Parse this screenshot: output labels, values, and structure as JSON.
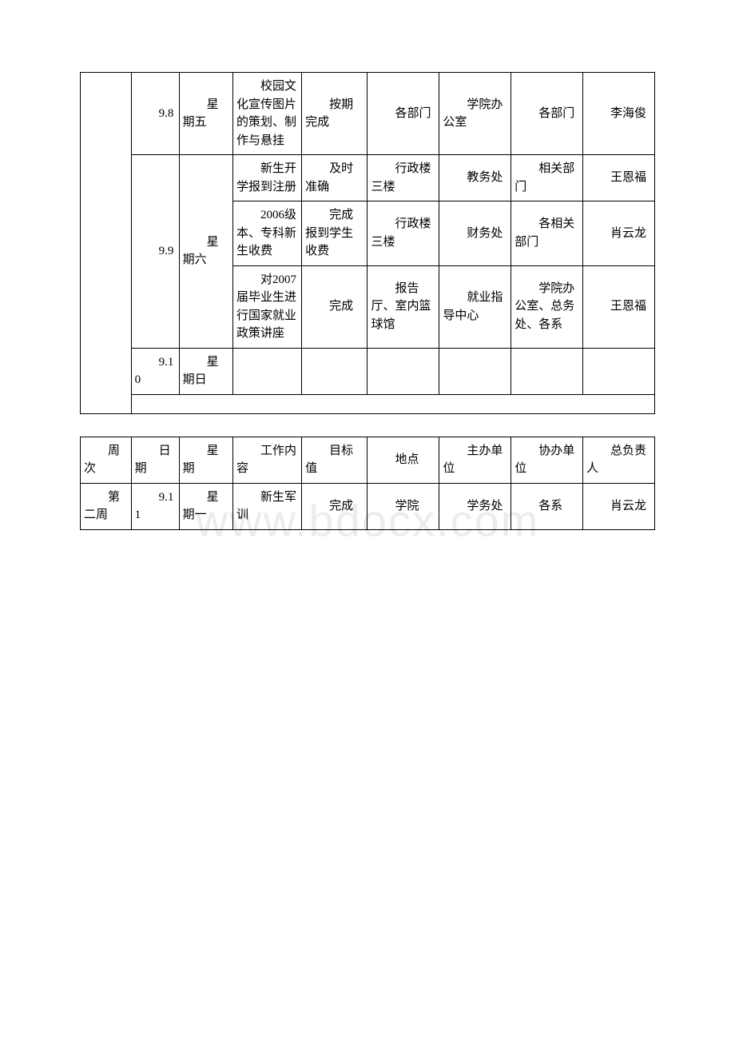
{
  "watermark": "www.bdocx.com",
  "table1": {
    "rows": [
      {
        "date": "9.8",
        "weekday": "星期五",
        "tasks": [
          {
            "content": "校园文化宣传图片的策划、制作与悬挂",
            "target": "按期完成",
            "location": "各部门",
            "host": "学院办公室",
            "assist": "各部门",
            "leader": "李海俊"
          }
        ]
      },
      {
        "date": "9.9",
        "weekday": "星期六",
        "tasks": [
          {
            "content": "新生开学报到注册",
            "target": "及时准确",
            "location": "行政楼三楼",
            "host": "教务处",
            "assist": "相关部门",
            "leader": "王恩福"
          },
          {
            "content": "2006级本、专科新生收费",
            "target": "完成报到学生收费",
            "location": "行政楼三楼",
            "host": "财务处",
            "assist": "各相关部门",
            "leader": "肖云龙"
          },
          {
            "content": "对2007届毕业生进行国家就业政策讲座",
            "target": "完成",
            "location": "报告厅、室内篮球馆",
            "host": "就业指导中心",
            "assist": "学院办公室、总务处、各系",
            "leader": "王恩福"
          }
        ]
      },
      {
        "date": "9.10",
        "weekday": "星期日",
        "tasks": [
          {
            "content": "",
            "target": "",
            "location": "",
            "host": "",
            "assist": "",
            "leader": ""
          }
        ]
      }
    ]
  },
  "table2": {
    "headers": {
      "week": "周次",
      "date": "日期",
      "weekday": "星期",
      "content": "工作内容",
      "target": "目标值",
      "location": "地点",
      "host": "主办单位",
      "assist": "协办单位",
      "leader": "总负责人"
    },
    "rows": [
      {
        "week": "第二周",
        "date": "9.11",
        "weekday": "星期一",
        "content": "新生军训",
        "target": "完成",
        "location": "学院",
        "host": "学务处",
        "assist": "各系",
        "leader": "肖云龙"
      }
    ]
  }
}
